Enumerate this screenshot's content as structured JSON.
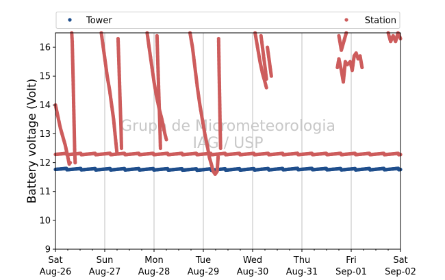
{
  "chart_data": {
    "type": "scatter",
    "ylabel": "Battery voltage (Volt)",
    "ylim": [
      9,
      16.5
    ],
    "yticks": [
      9,
      10,
      11,
      12,
      13,
      14,
      15,
      16
    ],
    "xlim": [
      "2017-08-26",
      "2017-09-02"
    ],
    "xticks": [
      {
        "day": "Sat",
        "date": "Aug-26"
      },
      {
        "day": "Sun",
        "date": "Aug-27"
      },
      {
        "day": "Mon",
        "date": "Aug-28"
      },
      {
        "day": "Tue",
        "date": "Aug-29"
      },
      {
        "day": "Wed",
        "date": "Aug-30"
      },
      {
        "day": "Thu",
        "date": "Aug-31"
      },
      {
        "day": "Fri",
        "date": "Sep-01"
      },
      {
        "day": "Sat",
        "date": "Sep-02"
      }
    ],
    "grid": "vertical",
    "legend_position": "top",
    "watermark": [
      "Grupo de Micrometeorologia",
      "IAG / USP"
    ],
    "series": [
      {
        "name": "Tower",
        "color": "#1f4e8c",
        "baseline": [
          [
            0,
            11.78
          ],
          [
            1,
            11.77
          ],
          [
            2,
            11.77
          ],
          [
            3,
            11.76
          ],
          [
            4,
            11.77
          ],
          [
            5,
            11.78
          ],
          [
            6,
            11.77
          ],
          [
            7,
            11.78
          ]
        ]
      },
      {
        "name": "Station",
        "color": "#cd5c5c",
        "baseline": [
          [
            0,
            12.3
          ],
          [
            7,
            12.3
          ]
        ],
        "traces": [
          [
            [
              0.0,
              14.0
            ],
            [
              0.05,
              13.6
            ],
            [
              0.1,
              13.2
            ],
            [
              0.15,
              12.9
            ],
            [
              0.2,
              12.6
            ],
            [
              0.25,
              12.2
            ],
            [
              0.28,
              11.95
            ],
            [
              0.3,
              12.0
            ]
          ],
          [
            [
              0.33,
              16.5
            ],
            [
              0.34,
              16.2
            ],
            [
              0.35,
              15.5
            ],
            [
              0.36,
              14.8
            ],
            [
              0.37,
              14.0
            ],
            [
              0.38,
              13.2
            ],
            [
              0.39,
              12.4
            ],
            [
              0.4,
              12.0
            ]
          ],
          [
            [
              0.93,
              16.5
            ],
            [
              0.97,
              16.0
            ],
            [
              1.01,
              15.5
            ],
            [
              1.05,
              15.0
            ],
            [
              1.1,
              14.5
            ],
            [
              1.14,
              14.0
            ],
            [
              1.18,
              13.5
            ],
            [
              1.22,
              12.8
            ],
            [
              1.25,
              12.3
            ]
          ],
          [
            [
              1.27,
              16.3
            ],
            [
              1.29,
              15.3
            ],
            [
              1.31,
              14.2
            ],
            [
              1.33,
              13.2
            ],
            [
              1.34,
              12.5
            ]
          ],
          [
            [
              1.86,
              16.5
            ],
            [
              1.9,
              16.0
            ],
            [
              1.95,
              15.4
            ],
            [
              2.0,
              14.8
            ],
            [
              2.05,
              14.3
            ],
            [
              2.1,
              13.9
            ],
            [
              2.16,
              13.5
            ],
            [
              2.22,
              13.0
            ],
            [
              2.25,
              12.8
            ]
          ],
          [
            [
              2.06,
              16.4
            ],
            [
              2.08,
              15.3
            ],
            [
              2.1,
              14.2
            ],
            [
              2.12,
              13.2
            ],
            [
              2.13,
              12.5
            ]
          ],
          [
            [
              2.73,
              16.5
            ],
            [
              2.78,
              16.0
            ],
            [
              2.83,
              15.3
            ],
            [
              2.88,
              14.6
            ],
            [
              2.93,
              14.0
            ],
            [
              2.98,
              13.5
            ],
            [
              3.03,
              13.0
            ],
            [
              3.08,
              12.6
            ],
            [
              3.12,
              12.2
            ],
            [
              3.17,
              11.9
            ],
            [
              3.2,
              11.7
            ],
            [
              3.24,
              11.6
            ],
            [
              3.28,
              11.7
            ],
            [
              3.3,
              12.2
            ]
          ],
          [
            [
              3.31,
              16.3
            ],
            [
              3.32,
              15.2
            ],
            [
              3.33,
              14.3
            ],
            [
              3.34,
              13.3
            ],
            [
              3.35,
              12.5
            ]
          ],
          [
            [
              4.05,
              16.5
            ],
            [
              4.1,
              16.0
            ],
            [
              4.15,
              15.5
            ],
            [
              4.2,
              15.1
            ],
            [
              4.25,
              14.8
            ],
            [
              4.28,
              14.6
            ]
          ],
          [
            [
              4.17,
              16.4
            ],
            [
              4.2,
              16.0
            ],
            [
              4.23,
              15.6
            ],
            [
              4.26,
              15.2
            ],
            [
              4.28,
              14.9
            ]
          ],
          [
            [
              4.3,
              16.0
            ],
            [
              4.34,
              15.5
            ],
            [
              4.38,
              15.0
            ]
          ],
          [
            [
              5.72,
              15.3
            ],
            [
              5.75,
              15.6
            ],
            [
              5.8,
              15.2
            ],
            [
              5.84,
              14.8
            ],
            [
              5.88,
              15.5
            ],
            [
              5.92,
              15.4
            ],
            [
              5.98,
              15.5
            ],
            [
              6.02,
              15.2
            ],
            [
              6.06,
              15.7
            ],
            [
              6.1,
              15.8
            ],
            [
              6.14,
              15.6
            ],
            [
              6.18,
              15.7
            ],
            [
              6.22,
              15.3
            ]
          ],
          [
            [
              5.75,
              16.4
            ],
            [
              5.8,
              15.9
            ],
            [
              5.85,
              16.2
            ],
            [
              5.9,
              16.5
            ]
          ],
          [
            [
              6.75,
              16.5
            ],
            [
              6.8,
              16.2
            ],
            [
              6.85,
              16.4
            ],
            [
              6.9,
              16.2
            ],
            [
              6.95,
              16.5
            ],
            [
              7.0,
              16.3
            ]
          ]
        ]
      }
    ]
  }
}
